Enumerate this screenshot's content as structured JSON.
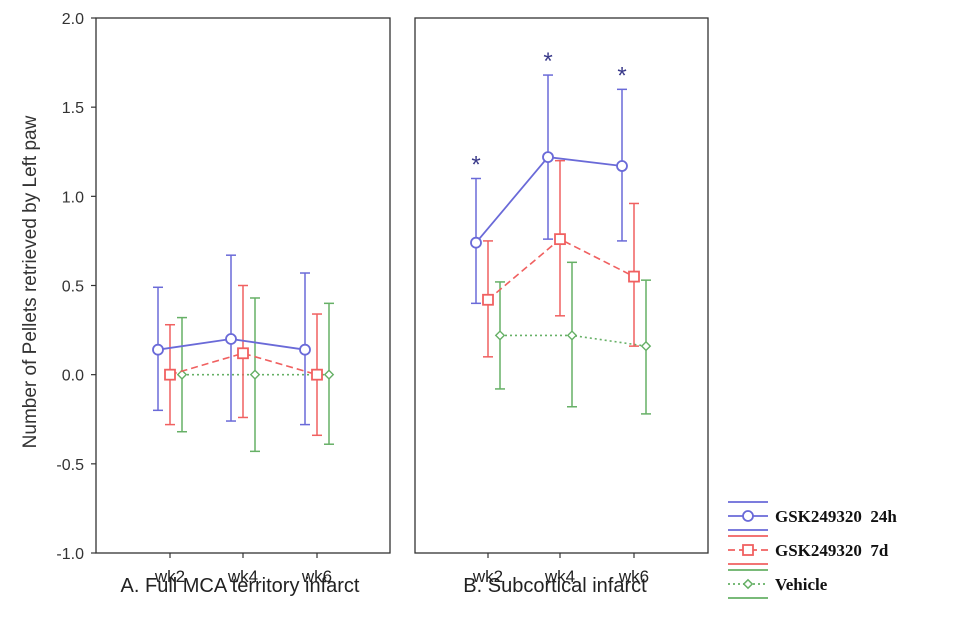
{
  "ylabel": "Number of Pellets retrieved by Left paw",
  "yticks": [
    "2.0",
    "1.5",
    "1.0",
    "0.5",
    "0.0",
    "-0.5",
    "-1.0"
  ],
  "legend": {
    "position": "bottom-right",
    "entries": [
      "GSK249320  24h",
      "GSK249320  7d",
      "Vehicle"
    ]
  },
  "colors": {
    "s24h": "#6a6ad8",
    "s7d": "#f06060",
    "vehicle": "#66b066"
  },
  "chart_data": [
    {
      "type": "line",
      "title": "A. Full MCA territory infarct",
      "categories": [
        "wk2",
        "wk4",
        "wk6"
      ],
      "ylim": [
        -1.0,
        2.0
      ],
      "ylabel": "Number of Pellets retrieved by Left paw",
      "grid": false,
      "series": [
        {
          "name": "GSK249320  24h",
          "values": [
            0.14,
            0.2,
            0.14
          ],
          "err_low": [
            -0.2,
            -0.26,
            -0.28
          ],
          "err_high": [
            0.49,
            0.67,
            0.57
          ]
        },
        {
          "name": "GSK249320  7d",
          "values": [
            0.0,
            0.12,
            0.0
          ],
          "err_low": [
            -0.28,
            -0.24,
            -0.34
          ],
          "err_high": [
            0.28,
            0.5,
            0.34
          ]
        },
        {
          "name": "Vehicle",
          "values": [
            0.0,
            0.0,
            0.0
          ],
          "err_low": [
            -0.32,
            -0.43,
            -0.39
          ],
          "err_high": [
            0.32,
            0.43,
            0.4
          ]
        }
      ],
      "annotations": []
    },
    {
      "type": "line",
      "title": "B. Subcortical infarct",
      "categories": [
        "wk2",
        "wk4",
        "wk6"
      ],
      "ylim": [
        -1.0,
        2.0
      ],
      "grid": false,
      "series": [
        {
          "name": "GSK249320  24h",
          "values": [
            0.74,
            1.22,
            1.17
          ],
          "err_low": [
            0.4,
            0.76,
            0.75
          ],
          "err_high": [
            1.1,
            1.68,
            1.6
          ]
        },
        {
          "name": "GSK249320  7d",
          "values": [
            0.42,
            0.76,
            0.55
          ],
          "err_low": [
            0.1,
            0.33,
            0.16
          ],
          "err_high": [
            0.75,
            1.2,
            0.96
          ]
        },
        {
          "name": "Vehicle",
          "values": [
            0.22,
            0.22,
            0.16
          ],
          "err_low": [
            -0.08,
            -0.18,
            -0.22
          ],
          "err_high": [
            0.52,
            0.63,
            0.53
          ]
        }
      ],
      "annotations": [
        {
          "text": "*",
          "category": "wk2"
        },
        {
          "text": "*",
          "category": "wk4"
        },
        {
          "text": "*",
          "category": "wk6"
        }
      ]
    }
  ]
}
